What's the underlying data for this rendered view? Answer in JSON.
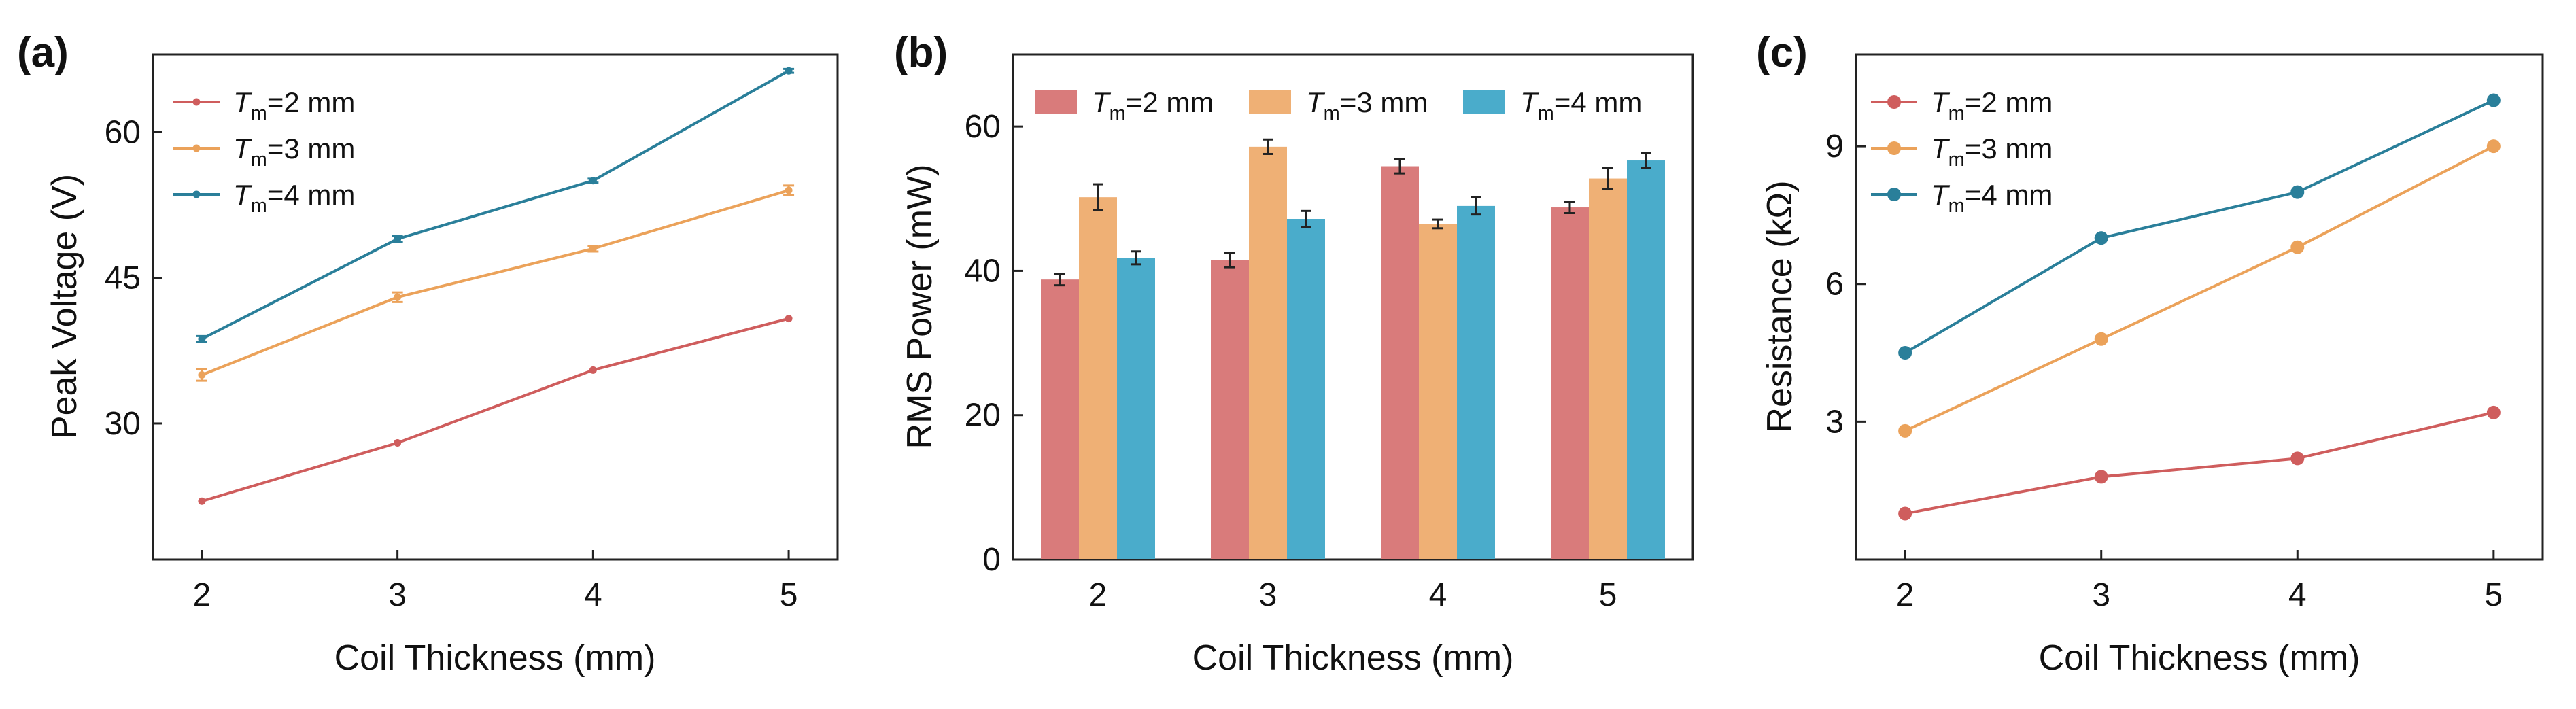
{
  "colors": {
    "red": "#cf5d5d",
    "orange": "#eba25a",
    "teal": "#2a7f9a",
    "bar_red": "#d97b7b",
    "bar_orange": "#efb075",
    "bar_blue": "#4aaccb"
  },
  "chart_data": [
    {
      "panel": "(a)",
      "type": "line",
      "x": [
        2,
        3,
        4,
        5
      ],
      "xticks": [
        "2",
        "3",
        "4",
        "5"
      ],
      "yticks": [
        "30",
        "45",
        "60"
      ],
      "xlabel": "Coil Thickness (mm)",
      "ylabel": "Peak Voltage (V)",
      "xlim": [
        1.75,
        5.25
      ],
      "ylim": [
        16,
        68
      ],
      "legend_position": "top-left",
      "series": [
        {
          "name": {
            "sym": "T",
            "sub": "m",
            "rest": "=2 mm"
          },
          "values": [
            22.0,
            28.0,
            35.5,
            40.8
          ],
          "errors": [
            0,
            0,
            0,
            0
          ],
          "color": "#cf5d5d"
        },
        {
          "name": {
            "sym": "T",
            "sub": "m",
            "rest": "=3 mm"
          },
          "values": [
            35.0,
            43.0,
            48.0,
            54.0
          ],
          "errors": [
            0.6,
            0.5,
            0.3,
            0.5
          ],
          "color": "#eba25a"
        },
        {
          "name": {
            "sym": "T",
            "sub": "m",
            "rest": "=4 mm"
          },
          "values": [
            38.7,
            49.0,
            55.0,
            66.3
          ],
          "errors": [
            0.3,
            0.3,
            0.2,
            0.2
          ],
          "color": "#2a7f9a"
        }
      ]
    },
    {
      "panel": "(b)",
      "type": "bar",
      "categories": [
        "2",
        "3",
        "4",
        "5"
      ],
      "yticks": [
        "0",
        "20",
        "40",
        "60"
      ],
      "xlabel": "Coil Thickness (mm)",
      "ylabel": "RMS Power (mW)",
      "ylim": [
        0,
        70
      ],
      "legend_position": "top",
      "series": [
        {
          "name": {
            "sym": "T",
            "sub": "m",
            "rest": "=2 mm"
          },
          "values": [
            38.8,
            41.5,
            54.5,
            48.8
          ],
          "errors": [
            0.8,
            1.0,
            1.0,
            0.8
          ],
          "color": "#d97b7b"
        },
        {
          "name": {
            "sym": "T",
            "sub": "m",
            "rest": "=3 mm"
          },
          "values": [
            50.2,
            57.2,
            46.5,
            52.8
          ],
          "errors": [
            1.8,
            1.0,
            0.6,
            1.5
          ],
          "color": "#efb075"
        },
        {
          "name": {
            "sym": "T",
            "sub": "m",
            "rest": "=4 mm"
          },
          "values": [
            41.8,
            47.2,
            49.0,
            55.3
          ],
          "errors": [
            0.9,
            1.1,
            1.2,
            1.0
          ],
          "color": "#4aaccb"
        }
      ]
    },
    {
      "panel": "(c)",
      "type": "line",
      "x": [
        2,
        3,
        4,
        5
      ],
      "xticks": [
        "2",
        "3",
        "4",
        "5"
      ],
      "yticks": [
        "3",
        "6",
        "9"
      ],
      "xlabel": "Coil Thickness (mm)",
      "ylabel": "Resistance (kΩ)",
      "xlim": [
        1.75,
        5.25
      ],
      "ylim": [
        0,
        11
      ],
      "legend_position": "top-left",
      "series": [
        {
          "name": {
            "sym": "T",
            "sub": "m",
            "rest": "=2 mm"
          },
          "values": [
            1.0,
            1.8,
            2.2,
            3.2
          ],
          "errors": [
            0,
            0,
            0,
            0
          ],
          "color": "#cf5d5d"
        },
        {
          "name": {
            "sym": "T",
            "sub": "m",
            "rest": "=3 mm"
          },
          "values": [
            2.8,
            4.8,
            6.8,
            9.0
          ],
          "errors": [
            0,
            0,
            0,
            0
          ],
          "color": "#eba25a"
        },
        {
          "name": {
            "sym": "T",
            "sub": "m",
            "rest": "=4 mm"
          },
          "values": [
            4.5,
            7.0,
            8.0,
            10.0
          ],
          "errors": [
            0,
            0,
            0,
            0
          ],
          "color": "#2a7f9a"
        }
      ]
    }
  ]
}
